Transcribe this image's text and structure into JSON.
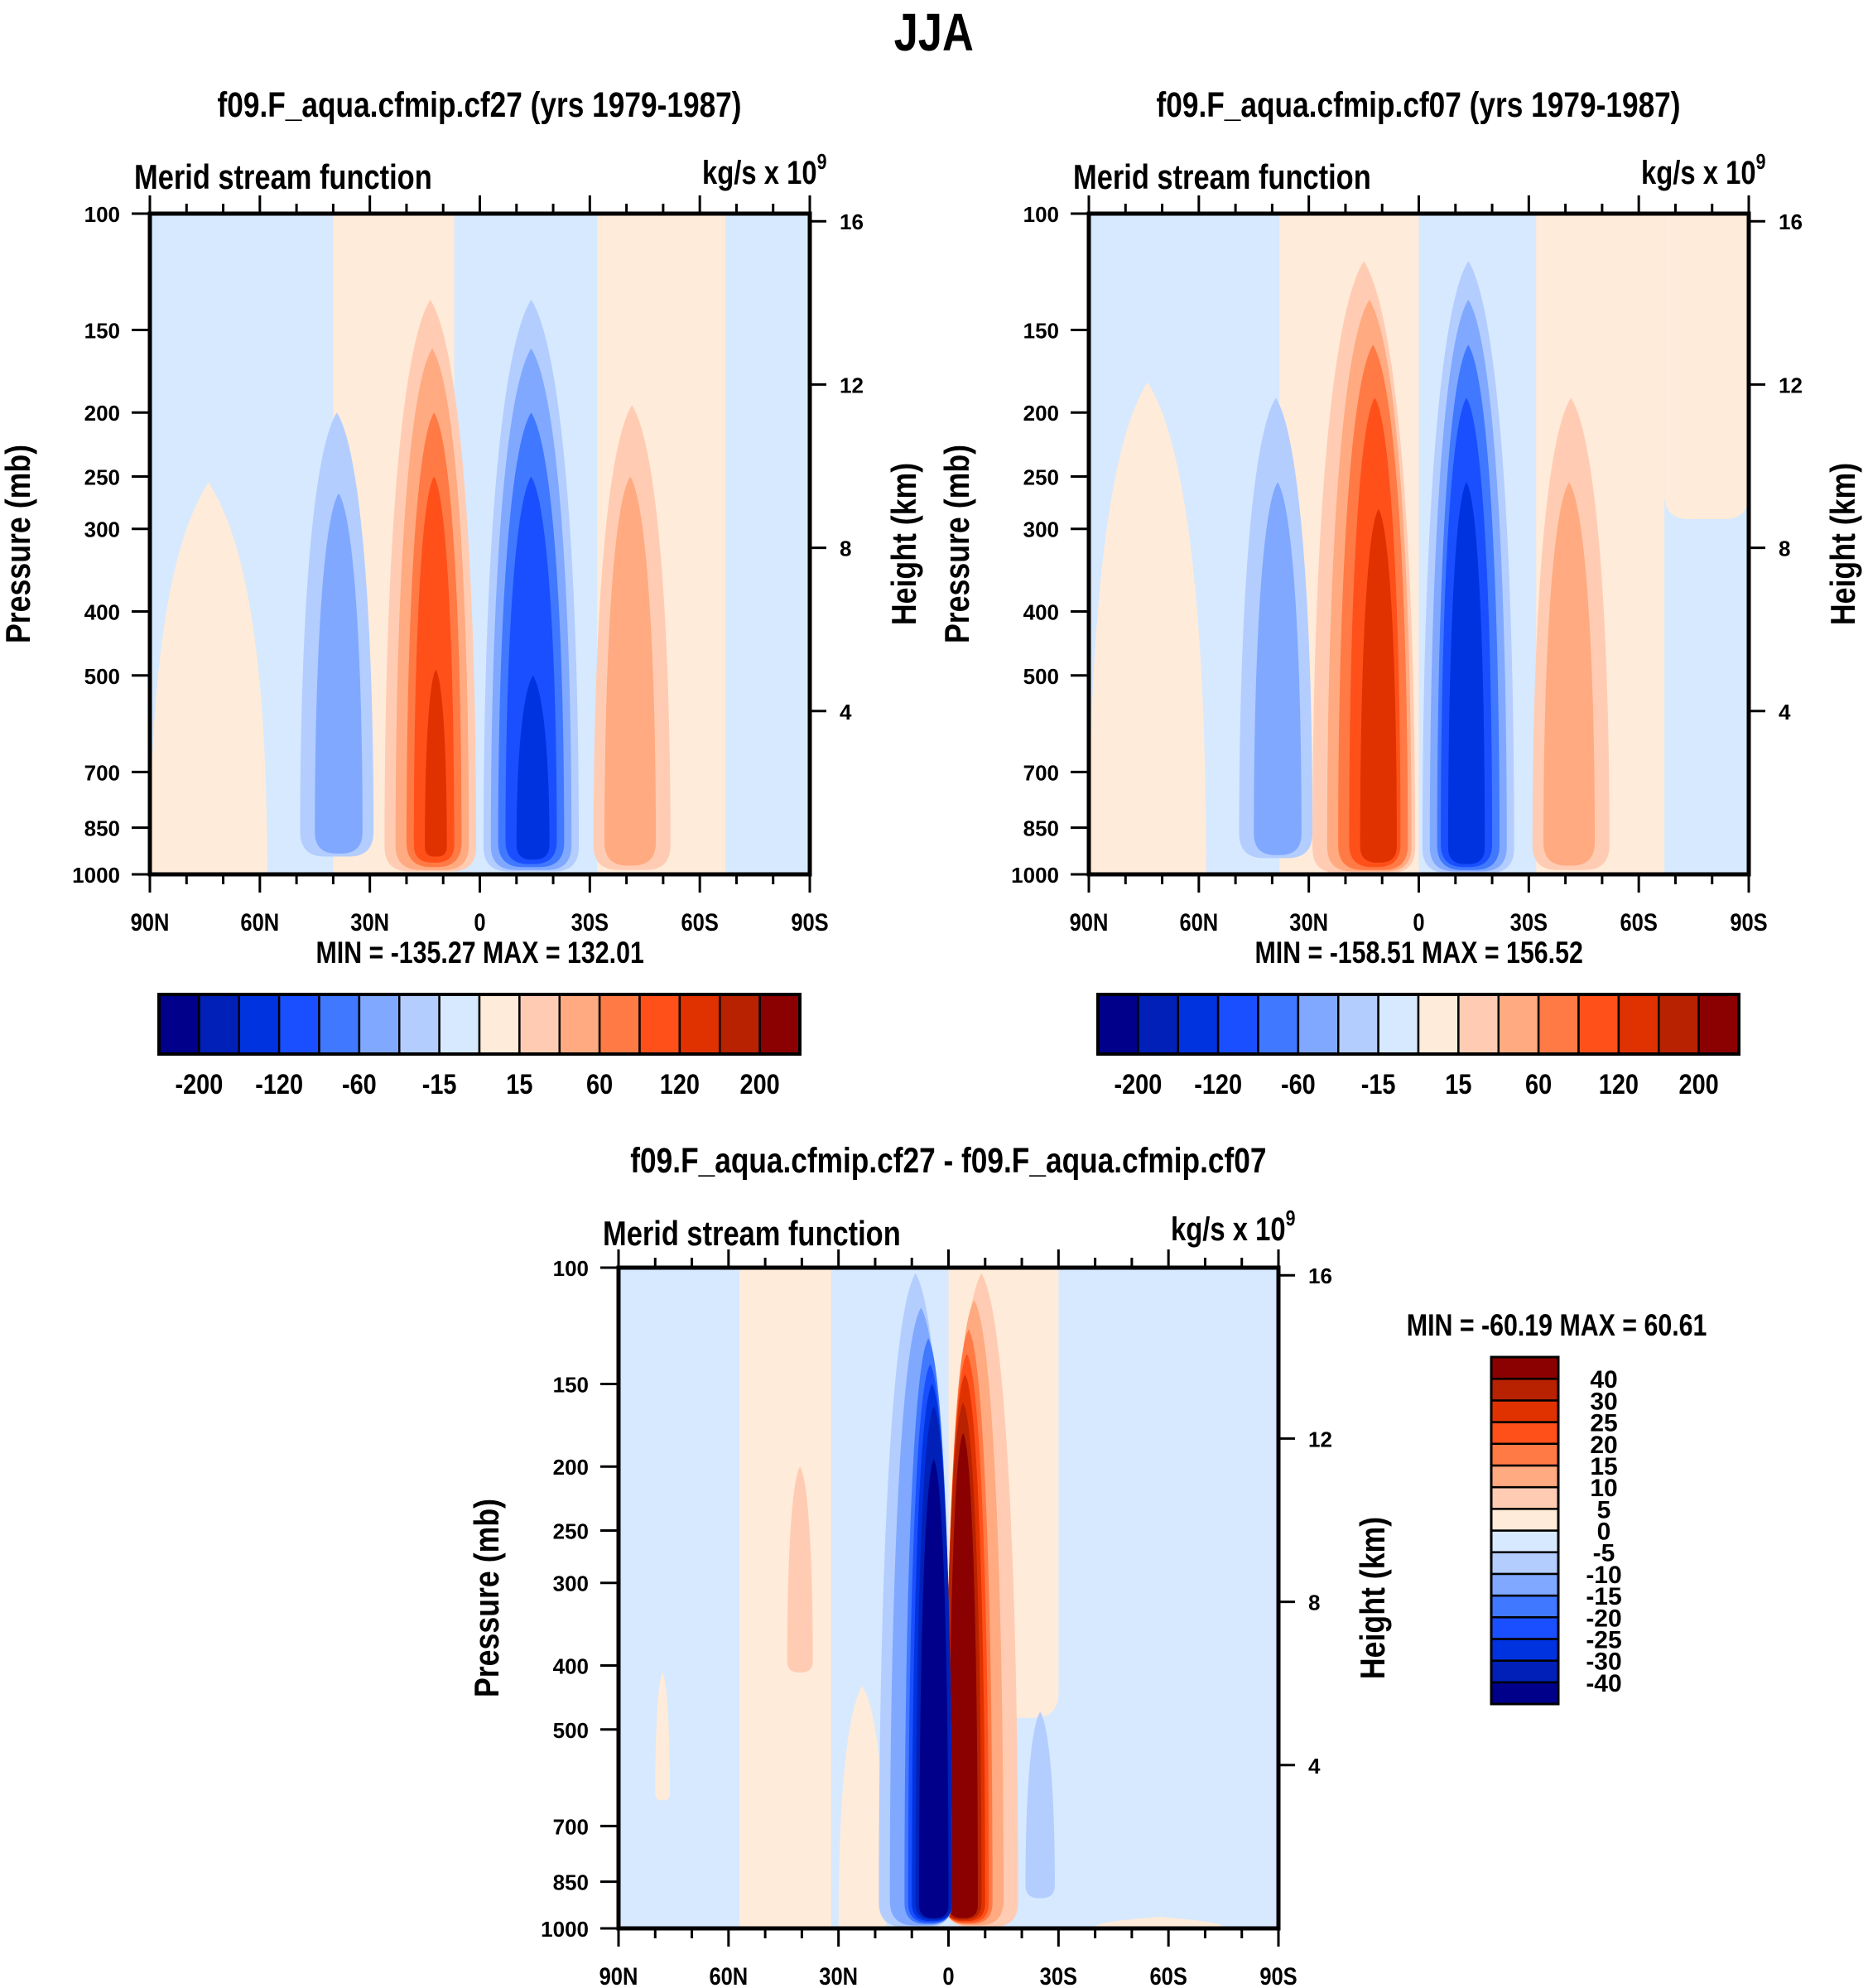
{
  "title": "JJA",
  "colors": {
    "16": [
      "#00008b",
      "#0020b8",
      "#0033e0",
      "#1a4fff",
      "#4078ff",
      "#80a8ff",
      "#b3cdff",
      "#d6e9ff",
      "#ffebd9",
      "#ffccb3",
      "#ffaa80",
      "#ff7a45",
      "#ff501a",
      "#e03200",
      "#b82200",
      "#8b0000"
    ]
  },
  "panels": [
    {
      "id": "cf27",
      "title": "f09.F_aqua.cfmip.cf27 (yrs 1979-1987)",
      "left_label": "Merid stream function",
      "units_base": "kg/s x 10",
      "units_exp": "9",
      "y_axis_label": "Pressure (mb)",
      "y2_axis_label": "Height (km)",
      "minmax": "MIN = -135.27  MAX = 132.01",
      "colorbar": {
        "orientation": "horizontal",
        "levels": [
          -200,
          -160,
          -120,
          -80,
          -60,
          -40,
          -15,
          0,
          15,
          40,
          60,
          80,
          120,
          160,
          200
        ],
        "labels": [
          "-200",
          "-120",
          "-60",
          "-15",
          "15",
          "60",
          "120",
          "200"
        ]
      }
    },
    {
      "id": "cf07",
      "title": "f09.F_aqua.cfmip.cf07 (yrs 1979-1987)",
      "left_label": "Merid stream function",
      "units_base": "kg/s x 10",
      "units_exp": "9",
      "y_axis_label": "Pressure (mb)",
      "y2_axis_label": "Height (km)",
      "minmax": "MIN = -158.51  MAX = 156.52",
      "colorbar": {
        "orientation": "horizontal",
        "levels": [
          -200,
          -160,
          -120,
          -80,
          -60,
          -40,
          -15,
          0,
          15,
          40,
          60,
          80,
          120,
          160,
          200
        ],
        "labels": [
          "-200",
          "-120",
          "-60",
          "-15",
          "15",
          "60",
          "120",
          "200"
        ]
      }
    },
    {
      "id": "diff",
      "title": "f09.F_aqua.cfmip.cf27 - f09.F_aqua.cfmip.cf07",
      "left_label": "Merid stream function",
      "units_base": "kg/s x 10",
      "units_exp": "9",
      "y_axis_label": "Pressure (mb)",
      "y2_axis_label": "Height (km)",
      "minmax": "MIN = -60.19  MAX =  60.61",
      "colorbar": {
        "orientation": "vertical",
        "levels": [
          -40,
          -30,
          -25,
          -20,
          -15,
          -10,
          -5,
          0,
          5,
          10,
          15,
          20,
          25,
          30,
          40
        ],
        "labels": [
          "-40",
          "-30",
          "-25",
          "-20",
          "-15",
          "-10",
          "-5",
          "0",
          "5",
          "10",
          "15",
          "20",
          "25",
          "30",
          "40"
        ]
      }
    }
  ],
  "chart_data": [
    {
      "type": "heatmap",
      "title": "f09.F_aqua.cfmip.cf27 (yrs 1979-1987)",
      "subtitle_left": "Merid stream function",
      "subtitle_right": "kg/s x 10^9",
      "xlabel": "",
      "ylabel": "Pressure (mb)",
      "y2label": "Height (km)",
      "x_ticks": [
        "90N",
        "60N",
        "30N",
        "0",
        "30S",
        "60S",
        "90S"
      ],
      "x_range_lat": [
        90,
        -90
      ],
      "y_ticks": [
        100,
        150,
        200,
        250,
        300,
        400,
        500,
        700,
        850,
        1000
      ],
      "y_range": [
        100,
        1000
      ],
      "y_scale": "log",
      "y2_ticks": [
        4,
        8,
        12,
        16
      ],
      "min": -135.27,
      "max": 132.01,
      "background_level": 0,
      "regions": [
        {
          "lat_n": 90,
          "lat_s": 58,
          "p_top": 255,
          "p_bot": 1000,
          "bin": 8
        },
        {
          "lat_n": 40,
          "lat_s": 7,
          "p_top": 100,
          "p_bot": 1000,
          "bin": 8
        },
        {
          "lat_n": -32,
          "lat_s": -67,
          "p_top": 100,
          "p_bot": 1000,
          "bin": 8
        },
        {
          "lat_n": 49,
          "lat_s": 29,
          "p_top": 200,
          "p_bot": 940,
          "bin": 6
        },
        {
          "lat_n": 45,
          "lat_s": 32,
          "p_top": 265,
          "p_bot": 930,
          "bin": 5
        },
        {
          "lat_n": 26,
          "lat_s": 1,
          "p_top": 135,
          "p_bot": 990,
          "bin": 9
        },
        {
          "lat_n": 23,
          "lat_s": 3,
          "p_top": 160,
          "p_bot": 985,
          "bin": 10
        },
        {
          "lat_n": 20,
          "lat_s": 5,
          "p_top": 200,
          "p_bot": 975,
          "bin": 11
        },
        {
          "lat_n": 18,
          "lat_s": 7,
          "p_top": 250,
          "p_bot": 960,
          "bin": 12
        },
        {
          "lat_n": 15,
          "lat_s": 9,
          "p_top": 490,
          "p_bot": 940,
          "bin": 13
        },
        {
          "lat_n": -1,
          "lat_s": -27,
          "p_top": 135,
          "p_bot": 990,
          "bin": 6
        },
        {
          "lat_n": -3,
          "lat_s": -25,
          "p_top": 160,
          "p_bot": 985,
          "bin": 5
        },
        {
          "lat_n": -5,
          "lat_s": -23,
          "p_top": 200,
          "p_bot": 975,
          "bin": 4
        },
        {
          "lat_n": -7,
          "lat_s": -21,
          "p_top": 250,
          "p_bot": 965,
          "bin": 3
        },
        {
          "lat_n": -10,
          "lat_s": -19,
          "p_top": 500,
          "p_bot": 950,
          "bin": 2
        },
        {
          "lat_n": -31,
          "lat_s": -52,
          "p_top": 195,
          "p_bot": 985,
          "bin": 9
        },
        {
          "lat_n": -34,
          "lat_s": -48,
          "p_top": 250,
          "p_bot": 970,
          "bin": 10
        }
      ]
    },
    {
      "type": "heatmap",
      "title": "f09.F_aqua.cfmip.cf07 (yrs 1979-1987)",
      "subtitle_left": "Merid stream function",
      "subtitle_right": "kg/s x 10^9",
      "ylabel": "Pressure (mb)",
      "y2label": "Height (km)",
      "x_ticks": [
        "90N",
        "60N",
        "30N",
        "0",
        "30S",
        "60S",
        "90S"
      ],
      "x_range_lat": [
        90,
        -90
      ],
      "y_ticks": [
        100,
        150,
        200,
        250,
        300,
        400,
        500,
        700,
        850,
        1000
      ],
      "y_range": [
        100,
        1000
      ],
      "y_scale": "log",
      "y2_ticks": [
        4,
        8,
        12,
        16
      ],
      "min": -158.51,
      "max": 156.52,
      "background_level": 0,
      "regions": [
        {
          "lat_n": 90,
          "lat_s": 58,
          "p_top": 180,
          "p_bot": 1000,
          "bin": 8
        },
        {
          "lat_n": 38,
          "lat_s": 0,
          "p_top": 100,
          "p_bot": 1000,
          "bin": 8
        },
        {
          "lat_n": -32,
          "lat_s": -67,
          "p_top": 100,
          "p_bot": 1000,
          "bin": 8
        },
        {
          "lat_n": -67,
          "lat_s": -90,
          "p_top": 100,
          "p_bot": 290,
          "bin": 8
        },
        {
          "lat_n": 49,
          "lat_s": 29,
          "p_top": 190,
          "p_bot": 945,
          "bin": 6
        },
        {
          "lat_n": 45,
          "lat_s": 32,
          "p_top": 255,
          "p_bot": 935,
          "bin": 5
        },
        {
          "lat_n": 29,
          "lat_s": 1,
          "p_top": 118,
          "p_bot": 995,
          "bin": 9
        },
        {
          "lat_n": 25,
          "lat_s": 2,
          "p_top": 135,
          "p_bot": 990,
          "bin": 10
        },
        {
          "lat_n": 22,
          "lat_s": 3,
          "p_top": 158,
          "p_bot": 985,
          "bin": 11
        },
        {
          "lat_n": 19,
          "lat_s": 5,
          "p_top": 190,
          "p_bot": 975,
          "bin": 12
        },
        {
          "lat_n": 16,
          "lat_s": 6,
          "p_top": 280,
          "p_bot": 960,
          "bin": 13
        },
        {
          "lat_n": -1,
          "lat_s": -26,
          "p_top": 118,
          "p_bot": 995,
          "bin": 6
        },
        {
          "lat_n": -3,
          "lat_s": -24,
          "p_top": 135,
          "p_bot": 990,
          "bin": 5
        },
        {
          "lat_n": -5,
          "lat_s": -22,
          "p_top": 158,
          "p_bot": 985,
          "bin": 4
        },
        {
          "lat_n": -6,
          "lat_s": -20,
          "p_top": 190,
          "p_bot": 975,
          "bin": 3
        },
        {
          "lat_n": -8,
          "lat_s": -18,
          "p_top": 255,
          "p_bot": 965,
          "bin": 2
        },
        {
          "lat_n": -31,
          "lat_s": -52,
          "p_top": 190,
          "p_bot": 985,
          "bin": 9
        },
        {
          "lat_n": -34,
          "lat_s": -48,
          "p_top": 255,
          "p_bot": 970,
          "bin": 10
        }
      ]
    },
    {
      "type": "heatmap",
      "title": "f09.F_aqua.cfmip.cf27 - f09.F_aqua.cfmip.cf07",
      "subtitle_left": "Merid stream function",
      "subtitle_right": "kg/s x 10^9",
      "ylabel": "Pressure (mb)",
      "y2label": "Height (km)",
      "x_ticks": [
        "90N",
        "60N",
        "30N",
        "0",
        "30S",
        "60S",
        "90S"
      ],
      "x_range_lat": [
        90,
        -90
      ],
      "y_ticks": [
        100,
        150,
        200,
        250,
        300,
        400,
        500,
        700,
        850,
        1000
      ],
      "y_range": [
        100,
        1000
      ],
      "y_scale": "log",
      "y2_ticks": [
        4,
        8,
        12,
        16
      ],
      "min": -60.19,
      "max": 60.61,
      "background_level": -1,
      "regions": [
        {
          "lat_n": 57,
          "lat_s": 32,
          "p_top": 100,
          "p_bot": 1000,
          "bin": 8
        },
        {
          "lat_n": 30,
          "lat_s": 17,
          "p_top": 430,
          "p_bot": 1000,
          "bin": 8
        },
        {
          "lat_n": 0,
          "lat_s": -30,
          "p_top": 100,
          "p_bot": 480,
          "bin": 8
        },
        {
          "lat_n": 80,
          "lat_s": 76,
          "p_top": 410,
          "p_bot": 640,
          "bin": 8
        },
        {
          "lat_n": -40,
          "lat_s": -75,
          "p_top": 960,
          "p_bot": 1000,
          "bin": 8
        },
        {
          "lat_n": 44,
          "lat_s": 37,
          "p_top": 200,
          "p_bot": 410,
          "bin": 9
        },
        {
          "lat_n": 1,
          "lat_s": -19,
          "p_top": 102,
          "p_bot": 995,
          "bin": 9
        },
        {
          "lat_n": 1,
          "lat_s": -15,
          "p_top": 112,
          "p_bot": 990,
          "bin": 10
        },
        {
          "lat_n": 1,
          "lat_s": -12,
          "p_top": 124,
          "p_bot": 985,
          "bin": 11
        },
        {
          "lat_n": 1,
          "lat_s": -11,
          "p_top": 135,
          "p_bot": 980,
          "bin": 12
        },
        {
          "lat_n": 1,
          "lat_s": -10,
          "p_top": 145,
          "p_bot": 975,
          "bin": 13
        },
        {
          "lat_n": 1,
          "lat_s": -9,
          "p_top": 160,
          "p_bot": 970,
          "bin": 14
        },
        {
          "lat_n": 0,
          "lat_s": -8,
          "p_top": 178,
          "p_bot": 965,
          "bin": 15
        },
        {
          "lat_n": 19,
          "lat_s": -1,
          "p_top": 102,
          "p_bot": 995,
          "bin": 6
        },
        {
          "lat_n": 16,
          "lat_s": -1,
          "p_top": 115,
          "p_bot": 990,
          "bin": 5
        },
        {
          "lat_n": 12,
          "lat_s": -1,
          "p_top": 128,
          "p_bot": 985,
          "bin": 4
        },
        {
          "lat_n": 11,
          "lat_s": -1,
          "p_top": 140,
          "p_bot": 980,
          "bin": 3
        },
        {
          "lat_n": 10,
          "lat_s": -1,
          "p_top": 150,
          "p_bot": 975,
          "bin": 2
        },
        {
          "lat_n": 9,
          "lat_s": -1,
          "p_top": 162,
          "p_bot": 970,
          "bin": 1
        },
        {
          "lat_n": 8,
          "lat_s": 0,
          "p_top": 195,
          "p_bot": 965,
          "bin": 0
        },
        {
          "lat_n": -21,
          "lat_s": -29,
          "p_top": 470,
          "p_bot": 900,
          "bin": 6
        }
      ]
    }
  ]
}
